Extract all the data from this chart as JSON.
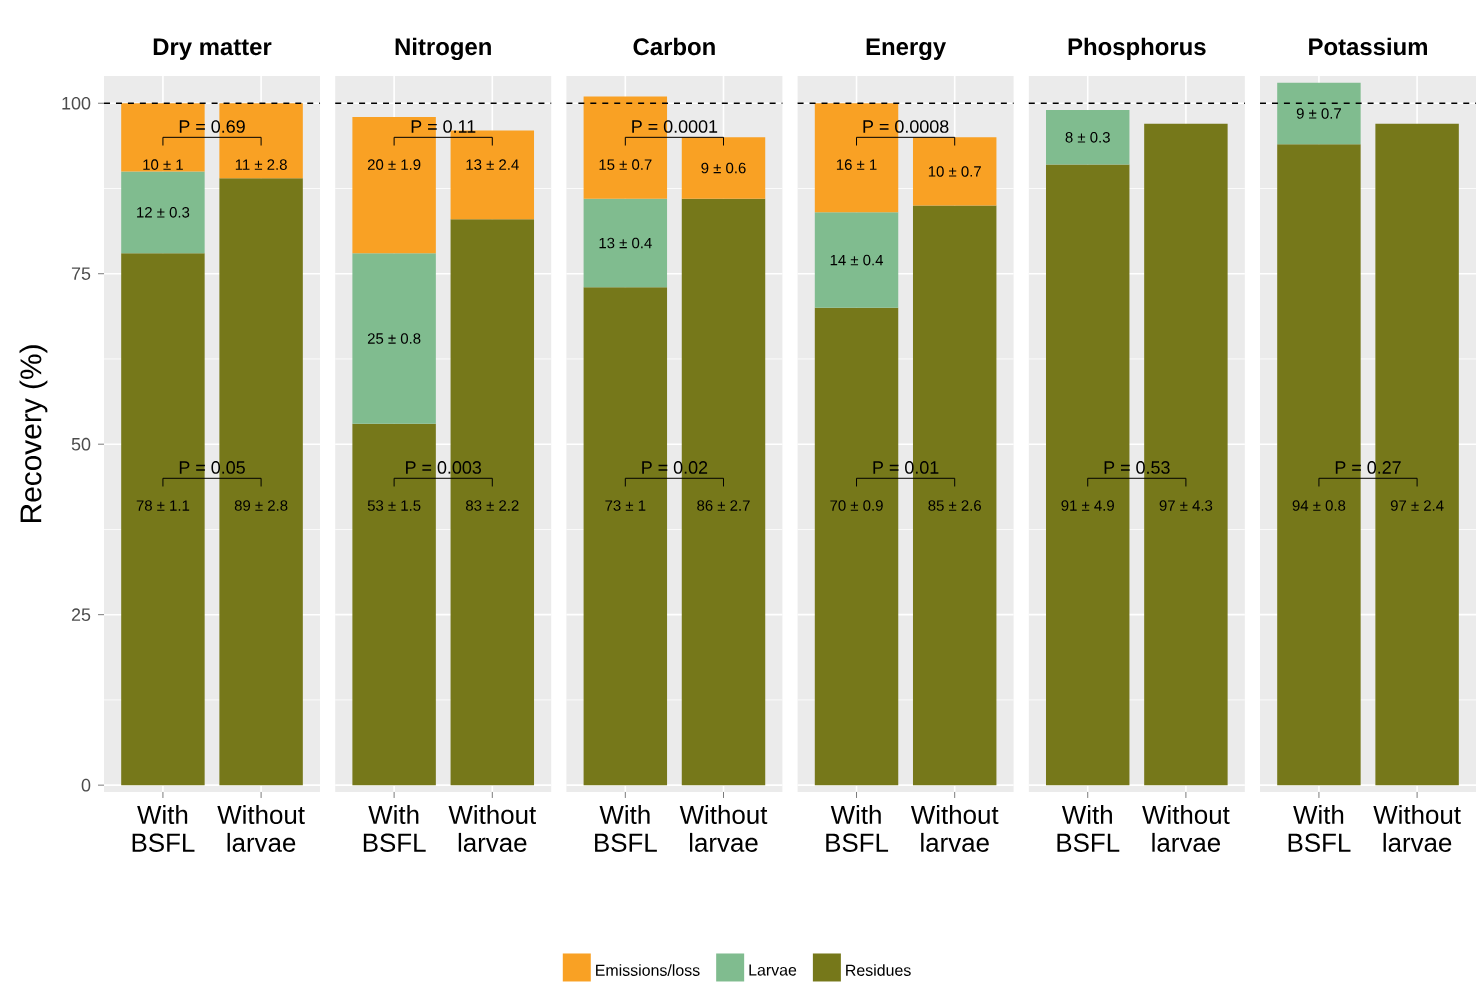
{
  "chart_data": [
    {
      "type": "bar",
      "stacked": true,
      "title": "Dry matter",
      "ylabel": "Recovery (%)",
      "categories": [
        "With BSFL",
        "Without larvae"
      ],
      "series": [
        {
          "name": "Residues",
          "color": "#76781a",
          "values": [
            78,
            89
          ],
          "value_labels": [
            "78 ± 1.1",
            "89 ± 2.8"
          ]
        },
        {
          "name": "Larvae",
          "color": "#80bc8f",
          "values": [
            12,
            null
          ],
          "value_labels": [
            "12 ± 0.3",
            null
          ]
        },
        {
          "name": "Emissions/loss",
          "color": "#f9a124",
          "values": [
            10,
            11
          ],
          "value_labels": [
            "10 ± 1",
            "11 ± 2.8"
          ]
        }
      ],
      "ylim": [
        -1,
        104
      ],
      "yticks": [
        0,
        25,
        50,
        75,
        100
      ],
      "grid": true,
      "legend": "bottom",
      "ref_lines": [
        {
          "axis": "y",
          "value": 100,
          "line_style": "dashed",
          "color": "#000000"
        }
      ],
      "annotations": [
        {
          "text": "P = 0.69",
          "y": 95
        },
        {
          "text": "P = 0.05",
          "y": 45
        }
      ]
    },
    {
      "type": "bar",
      "stacked": true,
      "title": "Nitrogen",
      "categories": [
        "With BSFL",
        "Without larvae"
      ],
      "series": [
        {
          "color": "#76781a",
          "values": [
            53,
            83
          ],
          "value_labels": [
            "53 ± 1.5",
            "83 ± 2.2"
          ]
        },
        {
          "color": "#80bc8f",
          "values": [
            25,
            null
          ],
          "value_labels": [
            "25 ± 0.8",
            null
          ]
        },
        {
          "color": "#f9a124",
          "values": [
            20,
            13
          ],
          "value_labels": [
            "20 ± 1.9",
            "13 ± 2.4"
          ]
        }
      ],
      "ylim": [
        -1,
        104
      ],
      "yticks": [
        0,
        25,
        50,
        75,
        100
      ],
      "grid": true,
      "tick_labels": "x",
      "ref_lines": [
        {
          "axis": "y",
          "value": 100,
          "line_style": "dashed",
          "color": "#000000"
        }
      ],
      "annotations": [
        {
          "text": "P = 0.11",
          "y": 95
        },
        {
          "text": "P = 0.003",
          "y": 45
        }
      ]
    },
    {
      "type": "bar",
      "stacked": true,
      "title": "Carbon",
      "categories": [
        "With BSFL",
        "Without larvae"
      ],
      "series": [
        {
          "color": "#76781a",
          "values": [
            73,
            86
          ],
          "value_labels": [
            "73 ± 1",
            "86 ± 2.7"
          ]
        },
        {
          "color": "#80bc8f",
          "values": [
            13,
            null
          ],
          "value_labels": [
            "13 ± 0.4",
            null
          ]
        },
        {
          "color": "#f9a124",
          "values": [
            15,
            9
          ],
          "value_labels": [
            "15 ± 0.7",
            "9 ± 0.6"
          ]
        }
      ],
      "ylim": [
        -1,
        104
      ],
      "yticks": [
        0,
        25,
        50,
        75,
        100
      ],
      "grid": true,
      "tick_labels": "x",
      "ref_lines": [
        {
          "axis": "y",
          "value": 100,
          "line_style": "dashed",
          "color": "#000000"
        }
      ],
      "annotations": [
        {
          "text": "P = 0.0001",
          "y": 95
        },
        {
          "text": "P = 0.02",
          "y": 45
        }
      ]
    },
    {
      "type": "bar",
      "stacked": true,
      "title": "Energy",
      "categories": [
        "With BSFL",
        "Without larvae"
      ],
      "series": [
        {
          "color": "#76781a",
          "values": [
            70,
            85
          ],
          "value_labels": [
            "70 ± 0.9",
            "85 ± 2.6"
          ]
        },
        {
          "color": "#80bc8f",
          "values": [
            14,
            null
          ],
          "value_labels": [
            "14 ± 0.4",
            null
          ]
        },
        {
          "color": "#f9a124",
          "values": [
            16,
            10
          ],
          "value_labels": [
            "16 ± 1",
            "10 ± 0.7"
          ]
        }
      ],
      "ylim": [
        -1,
        104
      ],
      "yticks": [
        0,
        25,
        50,
        75,
        100
      ],
      "grid": true,
      "tick_labels": "x",
      "ref_lines": [
        {
          "axis": "y",
          "value": 100,
          "line_style": "dashed",
          "color": "#000000"
        }
      ],
      "annotations": [
        {
          "text": "P = 0.0008",
          "y": 95
        },
        {
          "text": "P = 0.01",
          "y": 45
        }
      ]
    },
    {
      "type": "bar",
      "stacked": true,
      "title": "Phosphorus",
      "categories": [
        "With BSFL",
        "Without larvae"
      ],
      "series": [
        {
          "color": "#76781a",
          "values": [
            91,
            97
          ],
          "value_labels": [
            "91 ± 4.9",
            "97 ± 4.3"
          ]
        },
        {
          "color": "#80bc8f",
          "values": [
            8,
            null
          ],
          "value_labels": [
            "8 ± 0.3",
            null
          ]
        }
      ],
      "ylim": [
        -1,
        104
      ],
      "yticks": [
        0,
        25,
        50,
        75,
        100
      ],
      "grid": true,
      "tick_labels": "x",
      "ref_lines": [
        {
          "axis": "y",
          "value": 100,
          "line_style": "dashed",
          "color": "#000000"
        }
      ],
      "annotations": [
        {
          "text": "P = 0.53",
          "y": 45
        }
      ]
    },
    {
      "type": "bar",
      "stacked": true,
      "title": "Potassium",
      "categories": [
        "With BSFL",
        "Without larvae"
      ],
      "series": [
        {
          "color": "#76781a",
          "values": [
            94,
            97
          ],
          "value_labels": [
            "94 ± 0.8",
            "97 ± 2.4"
          ]
        },
        {
          "color": "#80bc8f",
          "values": [
            9,
            null
          ],
          "value_labels": [
            "9 ± 0.7",
            null
          ]
        }
      ],
      "ylim": [
        -1,
        104
      ],
      "yticks": [
        0,
        25,
        50,
        75,
        100
      ],
      "grid": true,
      "tick_labels": "x",
      "ref_lines": [
        {
          "axis": "y",
          "value": 100,
          "line_style": "dashed",
          "color": "#000000"
        }
      ],
      "annotations": [
        {
          "text": "P = 0.27",
          "y": 45
        }
      ]
    }
  ]
}
